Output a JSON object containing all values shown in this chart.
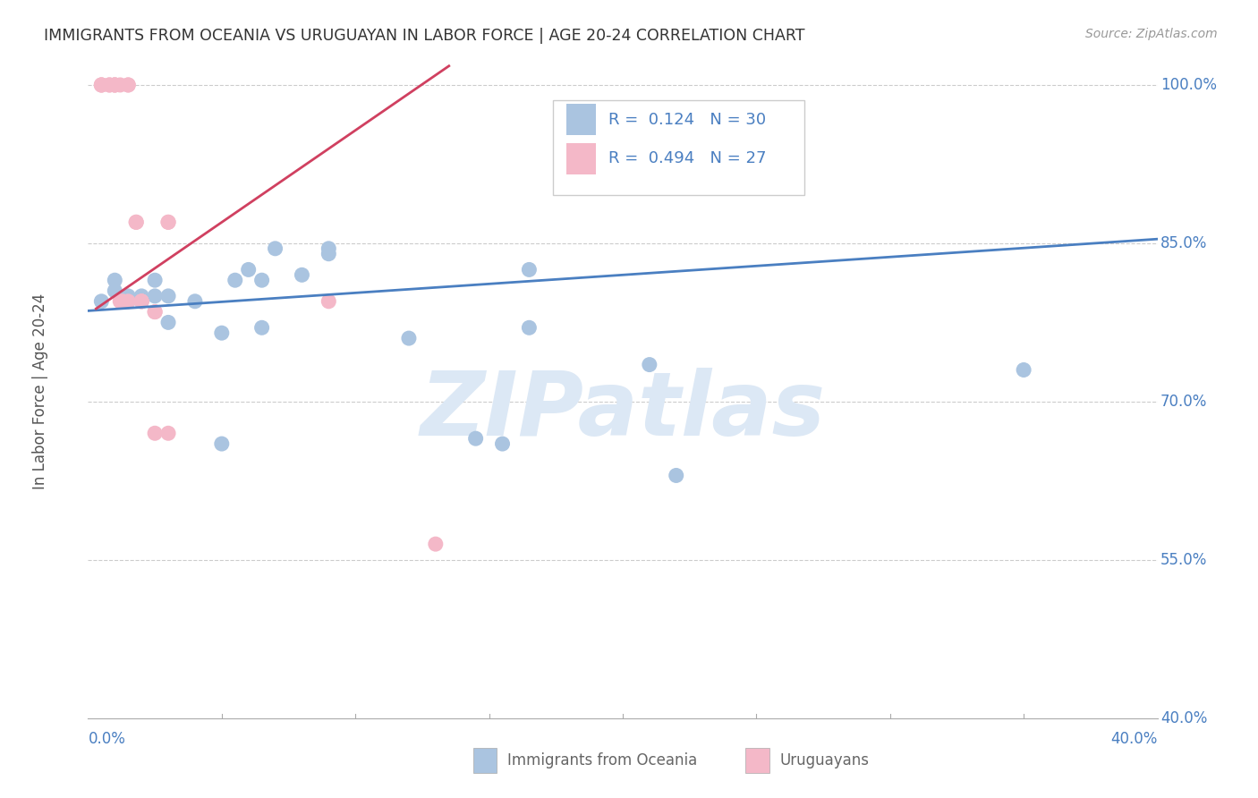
{
  "title": "IMMIGRANTS FROM OCEANIA VS URUGUAYAN IN LABOR FORCE | AGE 20-24 CORRELATION CHART",
  "source": "Source: ZipAtlas.com",
  "ylabel": "In Labor Force | Age 20-24",
  "x_min": 0.0,
  "x_max": 0.4,
  "y_min": 0.4,
  "y_max": 1.02,
  "grid_color": "#cccccc",
  "watermark": "ZIPatlas",
  "blue_scatter": {
    "x": [
      0.005,
      0.01,
      0.01,
      0.015,
      0.015,
      0.02,
      0.02,
      0.025,
      0.025,
      0.03,
      0.03,
      0.04,
      0.05,
      0.05,
      0.055,
      0.06,
      0.065,
      0.065,
      0.07,
      0.08,
      0.09,
      0.09,
      0.12,
      0.145,
      0.155,
      0.165,
      0.165,
      0.21,
      0.22,
      0.35
    ],
    "y": [
      0.795,
      0.815,
      0.805,
      0.8,
      0.795,
      0.8,
      0.795,
      0.815,
      0.8,
      0.8,
      0.775,
      0.795,
      0.765,
      0.66,
      0.815,
      0.825,
      0.815,
      0.77,
      0.845,
      0.82,
      0.84,
      0.845,
      0.76,
      0.665,
      0.66,
      0.825,
      0.77,
      0.735,
      0.63,
      0.73
    ],
    "color": "#aac4e0",
    "R": 0.124,
    "N": 30,
    "trend_x": [
      0.0,
      0.4
    ],
    "trend_y": [
      0.786,
      0.854
    ]
  },
  "pink_scatter": {
    "x": [
      0.005,
      0.005,
      0.005,
      0.008,
      0.008,
      0.01,
      0.01,
      0.01,
      0.012,
      0.012,
      0.013,
      0.015,
      0.015,
      0.015,
      0.018,
      0.018,
      0.02,
      0.02,
      0.02,
      0.025,
      0.025,
      0.025,
      0.03,
      0.03,
      0.03,
      0.09,
      0.13
    ],
    "y": [
      1.0,
      1.0,
      1.0,
      1.0,
      1.0,
      1.0,
      1.0,
      1.0,
      1.0,
      0.795,
      0.795,
      1.0,
      1.0,
      0.795,
      0.87,
      0.87,
      0.795,
      0.795,
      0.795,
      0.785,
      0.785,
      0.67,
      0.87,
      0.87,
      0.67,
      0.795,
      0.565
    ],
    "color": "#f4b8c8",
    "R": 0.494,
    "N": 27,
    "trend_x": [
      0.003,
      0.135
    ],
    "trend_y": [
      0.788,
      1.018
    ]
  },
  "legend_blue_color": "#4a7fc1",
  "legend_pink_color": "#d04060",
  "text_color": "#333333",
  "axis_color": "#4a7fc1",
  "watermark_color": "#dce8f5",
  "bottom_legend_color": "#666666"
}
